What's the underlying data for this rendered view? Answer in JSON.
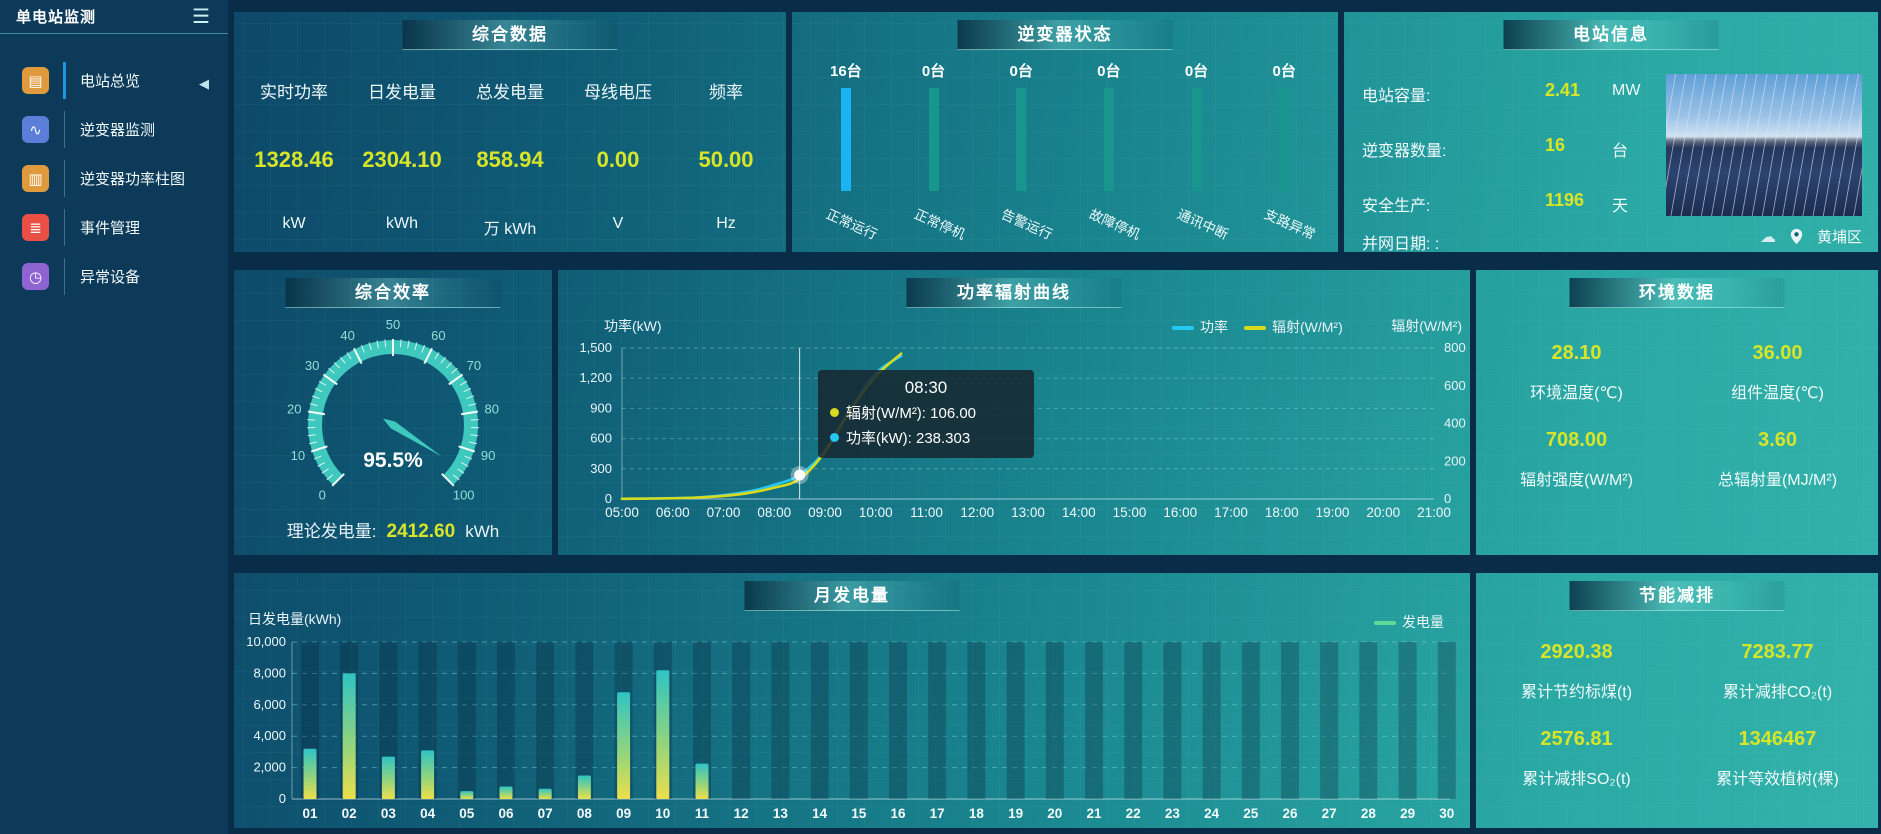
{
  "app": {
    "title": "单电站监测",
    "menu_icon": "☰",
    "collapse_icon": "◀"
  },
  "sidebar": {
    "items": [
      {
        "label": "电站总览",
        "icon": "▤",
        "color": "#e09a3e",
        "active": true
      },
      {
        "label": "逆变器监测",
        "icon": "∿",
        "color": "#5b7ed9",
        "active": false
      },
      {
        "label": "逆变器功率柱图",
        "icon": "▥",
        "color": "#e09a3e",
        "active": false
      },
      {
        "label": "事件管理",
        "icon": "≣",
        "color": "#ea4f45",
        "active": false
      },
      {
        "label": "异常设备",
        "icon": "◷",
        "color": "#8f63d2",
        "active": false
      }
    ]
  },
  "summary": {
    "title": "综合数据",
    "metrics": [
      {
        "label": "实时功率",
        "value": "1328.46",
        "unit": "kW"
      },
      {
        "label": "日发电量",
        "value": "2304.10",
        "unit": "kWh"
      },
      {
        "label": "总发电量",
        "value": "858.94",
        "unit": "万 kWh"
      },
      {
        "label": "母线电压",
        "value": "0.00",
        "unit": "V"
      },
      {
        "label": "频率",
        "value": "50.00",
        "unit": "Hz"
      }
    ]
  },
  "inverter_panel": {
    "title": "逆变器状态"
  },
  "station": {
    "title": "电站信息",
    "rows": [
      {
        "label": "电站容量:",
        "value": "2.41",
        "unit": "MW"
      },
      {
        "label": "逆变器数量:",
        "value": "16",
        "unit": "台"
      },
      {
        "label": "安全生产:",
        "value": "1196",
        "unit": "天"
      }
    ],
    "grid_date": "并网日期:  :",
    "location": "黄埔区"
  },
  "efficiency": {
    "title": "综合效率",
    "theory_label": "理论发电量:",
    "theory_value": "2412.60",
    "theory_unit": "kWh"
  },
  "power_panel": {
    "title": "功率辐射曲线",
    "left_axis_title": "功率(kW)",
    "right_axis_title": "辐射(W/M²)",
    "legend": [
      {
        "name": "功率",
        "color": "#25c8f2"
      },
      {
        "name": "辐射(W/M²)",
        "color": "#d8da1e"
      }
    ]
  },
  "environment": {
    "title": "环境数据",
    "metrics": [
      {
        "value": "28.10",
        "label": "环境温度(℃)"
      },
      {
        "value": "36.00",
        "label": "组件温度(℃)"
      },
      {
        "value": "708.00",
        "label": "辐射强度(W/M²)"
      },
      {
        "value": "3.60",
        "label": "总辐射量(MJ/M²)"
      }
    ]
  },
  "monthly_panel": {
    "title": "月发电量",
    "y_title": "日发电量(kWh)",
    "legend": "发电量"
  },
  "saving": {
    "title": "节能减排",
    "metrics": [
      {
        "value": "2920.38",
        "label": "累计节约标煤(t)"
      },
      {
        "value": "7283.77",
        "label": "累计减排CO₂(t)"
      },
      {
        "value": "2576.81",
        "label": "累计减排SO₂(t)"
      },
      {
        "value": "1346467",
        "label": "累计等效植树(棵)"
      }
    ]
  },
  "colors": {
    "accent_value": "#d7e529",
    "inverter_highlight": "#1ab4f2",
    "inverter_normal": "#18968e",
    "line_power": "#25c8f2",
    "line_radiation": "#d8da1e",
    "gauge": "#3fc8bd",
    "monthly_legend": "#62d896",
    "bar_gradient_top": "#2fc3c4",
    "bar_gradient_bottom": "#ecdf4a"
  },
  "chart_data": [
    {
      "id": "power_radiation",
      "type": "line",
      "title": "功率辐射曲线",
      "x": [
        "05:00",
        "06:00",
        "07:00",
        "08:00",
        "09:00",
        "10:00",
        "11:00",
        "12:00",
        "13:00",
        "14:00",
        "15:00",
        "16:00",
        "17:00",
        "18:00",
        "19:00",
        "20:00",
        "21:00"
      ],
      "left_axis": {
        "title": "功率(kW)",
        "ticks": [
          "0",
          "300",
          "600",
          "900",
          "1,200",
          "1,500"
        ],
        "max": 1500
      },
      "right_axis": {
        "title": "辐射(W/M²)",
        "ticks": [
          "0",
          "200",
          "400",
          "600",
          "800"
        ],
        "max": 800
      },
      "series": [
        {
          "name": "功率",
          "color": "#25c8f2",
          "yaxis": "left",
          "points": [
            [
              5,
              2
            ],
            [
              5.5,
              4
            ],
            [
              6,
              8
            ],
            [
              6.5,
              16
            ],
            [
              7,
              38
            ],
            [
              7.5,
              75
            ],
            [
              8,
              140
            ],
            [
              8.5,
              238.3
            ],
            [
              9,
              480
            ],
            [
              9.5,
              900
            ],
            [
              10,
              1250
            ],
            [
              10.5,
              1420
            ]
          ]
        },
        {
          "name": "辐射(W/M²)",
          "color": "#d8da1e",
          "yaxis": "right",
          "points": [
            [
              5,
              1
            ],
            [
              5.5,
              2
            ],
            [
              6,
              4
            ],
            [
              6.5,
              8
            ],
            [
              7,
              16
            ],
            [
              7.5,
              32
            ],
            [
              8,
              60
            ],
            [
              8.5,
              106
            ],
            [
              9,
              250
            ],
            [
              9.5,
              470
            ],
            [
              10,
              650
            ],
            [
              10.5,
              770
            ]
          ]
        }
      ],
      "tooltip": {
        "time": "08:30",
        "x": 8.5,
        "marker_value": 238.3,
        "rows": [
          {
            "series": "辐射(W/M²)",
            "text": "辐射(W/M²): 106.00",
            "color": "#d8da1e"
          },
          {
            "series": "功率(kW)",
            "text": "功率(kW): 238.303",
            "color": "#25c8f2"
          }
        ]
      },
      "legend_position": "top-right",
      "grid": true
    },
    {
      "id": "monthly_generation",
      "type": "bar",
      "title": "月发电量",
      "ylabel": "日发电量(kWh)",
      "legend": "发电量",
      "categories": [
        "01",
        "02",
        "03",
        "04",
        "05",
        "06",
        "07",
        "08",
        "09",
        "10",
        "11",
        "12",
        "13",
        "14",
        "15",
        "16",
        "17",
        "18",
        "19",
        "20",
        "21",
        "22",
        "23",
        "24",
        "25",
        "26",
        "27",
        "28",
        "29",
        "30"
      ],
      "values": [
        3200,
        8000,
        2700,
        3100,
        500,
        800,
        650,
        1500,
        6800,
        8200,
        2250,
        0,
        0,
        0,
        0,
        0,
        0,
        0,
        0,
        0,
        0,
        0,
        0,
        0,
        0,
        0,
        0,
        0,
        0,
        0
      ],
      "yticks": [
        "0",
        "2,000",
        "4,000",
        "6,000",
        "8,000",
        "10,000"
      ],
      "ylim": [
        0,
        10000
      ],
      "grid": true
    },
    {
      "id": "inverter_status",
      "type": "bar",
      "title": "逆变器状态",
      "categories": [
        "正常运行",
        "正常停机",
        "告警运行",
        "故障停机",
        "通讯中断",
        "支路异常"
      ],
      "values": [
        16,
        0,
        0,
        0,
        0,
        0
      ],
      "value_labels": [
        "16台",
        "0台",
        "0台",
        "0台",
        "0台",
        "0台"
      ]
    },
    {
      "id": "efficiency_gauge",
      "type": "gauge",
      "title": "综合效率",
      "value": 95.5,
      "display": "95.5%",
      "min": 0,
      "max": 100,
      "tick_step": 10
    }
  ]
}
